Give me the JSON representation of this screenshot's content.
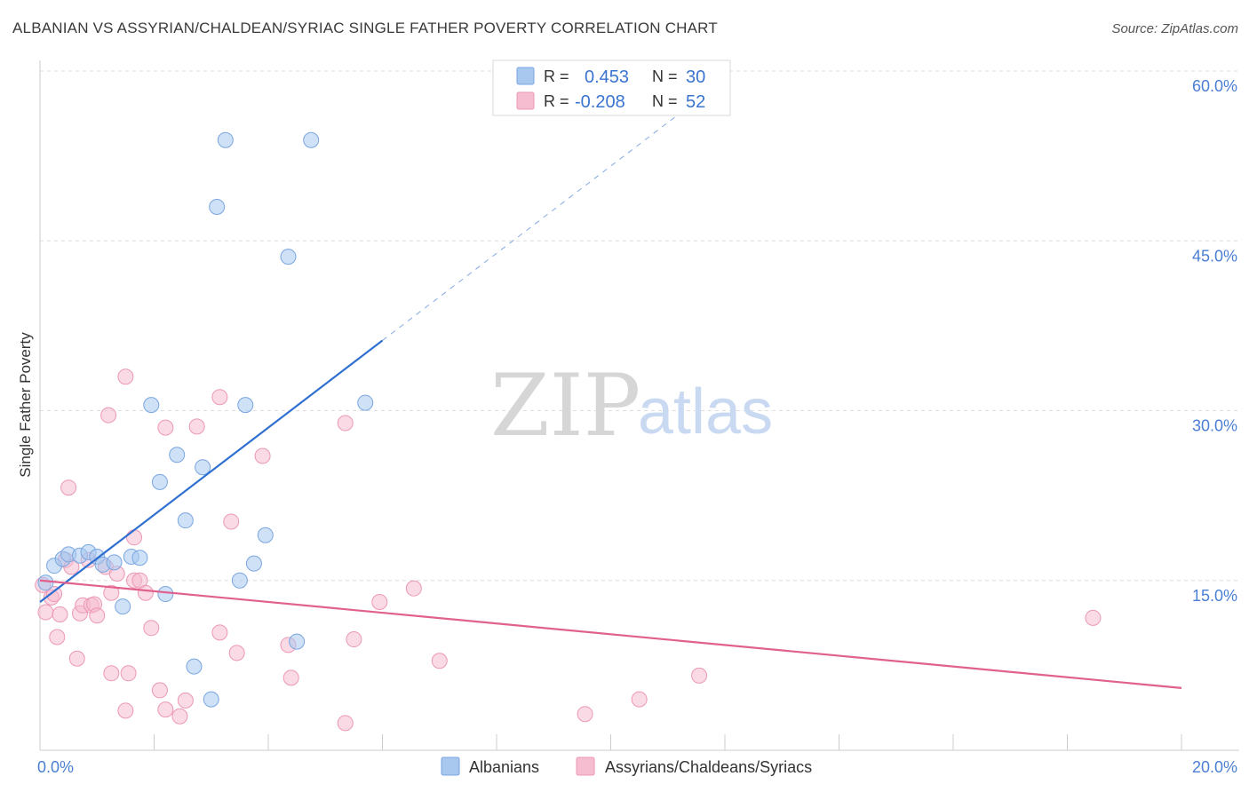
{
  "title": "ALBANIAN VS ASSYRIAN/CHALDEAN/SYRIAC SINGLE FATHER POVERTY CORRELATION CHART",
  "source": "Source: ZipAtlas.com",
  "watermark": {
    "zip": "ZIP",
    "atlas": "atlas"
  },
  "colors": {
    "blue_fill": "#a8c8f0",
    "blue_stroke": "#7aa6e0",
    "blue_line": "#2f6fd0",
    "pink_fill": "#f6bcd0",
    "pink_stroke": "#ec98b6",
    "pink_line": "#e0608e",
    "grid": "#dddddd",
    "tick_text": "#4a7fd4"
  },
  "legend": {
    "rows": [
      {
        "r_label": "R =",
        "r_value": "0.453",
        "n_label": "N =",
        "n_value": "30"
      },
      {
        "r_label": "R =",
        "r_value": "-0.208",
        "n_label": "N =",
        "n_value": "52"
      }
    ]
  },
  "bottom_legend": [
    "Albanians",
    "Assyrians/Chaldeans/Syriacs"
  ],
  "chart_data": {
    "type": "scatter",
    "title": "ALBANIAN VS ASSYRIAN/CHALDEAN/SYRIAC SINGLE FATHER POVERTY CORRELATION CHART",
    "ylabel": "Single Father Poverty",
    "xlabel": "",
    "xlim": [
      0,
      20
    ],
    "ylim": [
      0,
      60
    ],
    "x_tick_labels": [
      "0.0%",
      "20.0%"
    ],
    "y_tick_labels": [
      "15.0%",
      "30.0%",
      "45.0%",
      "60.0%"
    ],
    "y_ticks": [
      15,
      30,
      45,
      60
    ],
    "series": [
      {
        "name": "Albanians",
        "r": 0.453,
        "n": 30,
        "points": [
          [
            0.1,
            14.8
          ],
          [
            0.25,
            16.3
          ],
          [
            0.4,
            16.9
          ],
          [
            0.5,
            17.3
          ],
          [
            0.7,
            17.2
          ],
          [
            0.85,
            17.5
          ],
          [
            1.0,
            17.1
          ],
          [
            1.1,
            16.4
          ],
          [
            1.3,
            16.6
          ],
          [
            1.45,
            12.7
          ],
          [
            1.6,
            17.1
          ],
          [
            1.75,
            17.0
          ],
          [
            1.95,
            30.5
          ],
          [
            2.1,
            23.7
          ],
          [
            2.2,
            13.8
          ],
          [
            2.4,
            26.1
          ],
          [
            2.55,
            20.3
          ],
          [
            2.7,
            7.4
          ],
          [
            2.85,
            25.0
          ],
          [
            3.0,
            4.5
          ],
          [
            3.1,
            48.0
          ],
          [
            3.25,
            53.9
          ],
          [
            3.5,
            15.0
          ],
          [
            3.6,
            30.5
          ],
          [
            3.75,
            16.5
          ],
          [
            3.95,
            19.0
          ],
          [
            4.35,
            43.6
          ],
          [
            4.5,
            9.6
          ],
          [
            4.75,
            53.9
          ],
          [
            5.7,
            30.7
          ]
        ],
        "trend": {
          "x": [
            0,
            6
          ],
          "y": [
            13.1,
            36.2
          ],
          "dashed_to": [
            12,
            59.3
          ]
        }
      },
      {
        "name": "Assyrians/Chaldeans/Syriacs",
        "r": -0.208,
        "n": 52,
        "points": [
          [
            0.05,
            14.6
          ],
          [
            0.1,
            12.2
          ],
          [
            0.2,
            13.5
          ],
          [
            0.25,
            13.8
          ],
          [
            0.3,
            10.0
          ],
          [
            0.35,
            12.0
          ],
          [
            0.45,
            16.8
          ],
          [
            0.5,
            23.2
          ],
          [
            0.55,
            16.2
          ],
          [
            0.65,
            8.1
          ],
          [
            0.7,
            12.1
          ],
          [
            0.75,
            12.8
          ],
          [
            0.85,
            16.8
          ],
          [
            0.9,
            12.8
          ],
          [
            0.95,
            12.9
          ],
          [
            1.0,
            11.9
          ],
          [
            1.15,
            16.2
          ],
          [
            1.2,
            29.6
          ],
          [
            1.25,
            13.9
          ],
          [
            1.25,
            6.8
          ],
          [
            1.35,
            15.6
          ],
          [
            1.5,
            33.0
          ],
          [
            1.5,
            3.5
          ],
          [
            1.55,
            6.8
          ],
          [
            1.65,
            18.8
          ],
          [
            1.65,
            15.0
          ],
          [
            1.75,
            15.0
          ],
          [
            1.85,
            13.9
          ],
          [
            1.95,
            10.8
          ],
          [
            2.1,
            5.3
          ],
          [
            2.2,
            28.5
          ],
          [
            2.2,
            3.6
          ],
          [
            2.45,
            3.0
          ],
          [
            2.55,
            4.4
          ],
          [
            2.75,
            28.6
          ],
          [
            3.15,
            10.4
          ],
          [
            3.15,
            31.2
          ],
          [
            3.35,
            20.2
          ],
          [
            3.45,
            8.6
          ],
          [
            3.9,
            26.0
          ],
          [
            4.35,
            9.3
          ],
          [
            4.4,
            6.4
          ],
          [
            5.35,
            28.9
          ],
          [
            5.35,
            2.4
          ],
          [
            5.5,
            9.8
          ],
          [
            5.95,
            13.1
          ],
          [
            6.55,
            14.3
          ],
          [
            7.0,
            7.9
          ],
          [
            9.55,
            3.2
          ],
          [
            10.5,
            4.5
          ],
          [
            11.55,
            6.6
          ],
          [
            18.45,
            11.7
          ]
        ],
        "trend": {
          "x": [
            0,
            20
          ],
          "y": [
            15.0,
            5.5
          ]
        }
      }
    ],
    "grid": true,
    "legend_position": "top-center"
  }
}
